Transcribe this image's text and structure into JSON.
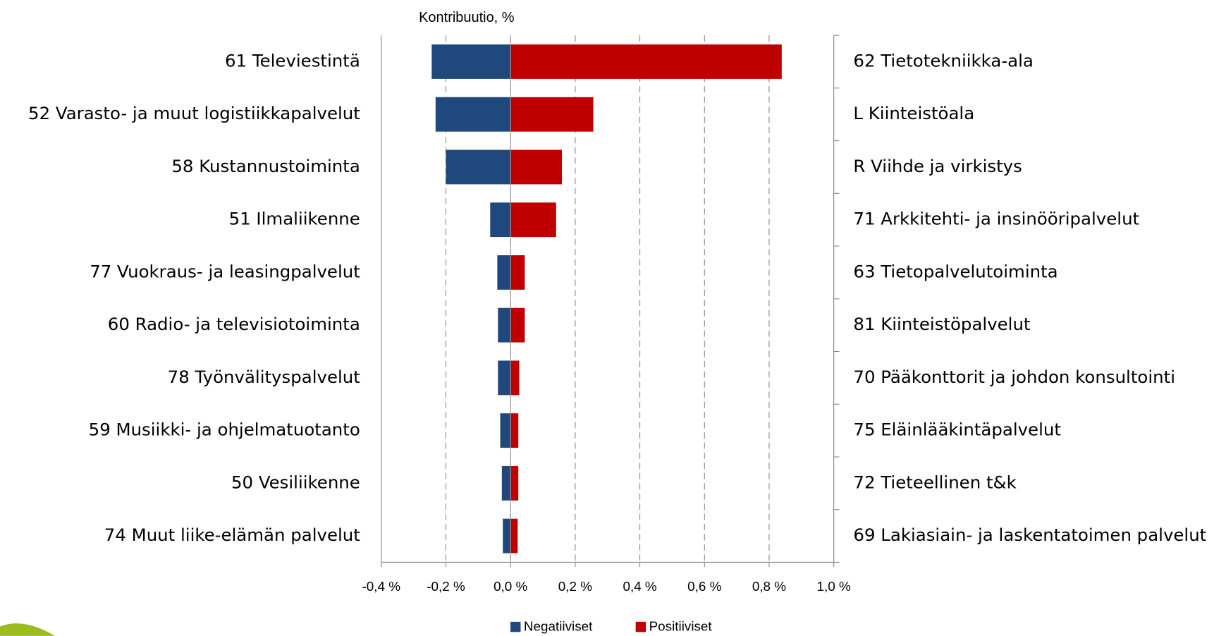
{
  "chart_data": {
    "type": "diverging-bar",
    "x_label": "Kontribuutio, %",
    "xlim": [
      -0.4,
      1.0
    ],
    "xticks": [
      {
        "value": -0.4,
        "label": "-0,4 %"
      },
      {
        "value": -0.2,
        "label": "-0,2 %"
      },
      {
        "value": 0.0,
        "label": "0,0 %"
      },
      {
        "value": 0.2,
        "label": "0,2 %"
      },
      {
        "value": 0.4,
        "label": "0,4 %"
      },
      {
        "value": 0.6,
        "label": "0,6 %"
      },
      {
        "value": 0.8,
        "label": "0,8 %"
      },
      {
        "value": 1.0,
        "label": "1,0 %"
      }
    ],
    "grid": true,
    "legend": "bottom",
    "series": [
      {
        "name": "Negatiiviset",
        "color": "#1f497d",
        "categories": [
          "61 Televiestintä",
          "52 Varasto- ja muut logistiikkapalvelut",
          "58 Kustannustoiminta",
          "51 Ilmaliikenne",
          "77 Vuokraus- ja leasingpalvelut",
          "60 Radio- ja televisiotoiminta",
          "78 Työnvälityspalvelut",
          "59 Musiikki- ja ohjelmatuotanto",
          "50 Vesiliikenne",
          "74 Muut liike-elämän palvelut"
        ],
        "values": [
          -0.244,
          -0.232,
          -0.2,
          -0.063,
          -0.041,
          -0.039,
          -0.039,
          -0.032,
          -0.027,
          -0.024
        ]
      },
      {
        "name": "Positiiviset",
        "color": "#c00000",
        "categories": [
          "62 Tietotekniikka-ala",
          "L Kiinteistöala",
          "R Viihde ja virkistys",
          "71 Arkkitehti- ja insinööripalvelut",
          "63 Tietopalvelutoiminta",
          "81 Kiinteistöpalvelut",
          "70 Pääkonttorit ja johdon konsultointi",
          "75 Eläinlääkintäpalvelut",
          "72 Tieteellinen t&k",
          "69 Lakiasiain- ja laskentatoimen palvelut"
        ],
        "values": [
          0.839,
          0.256,
          0.159,
          0.141,
          0.044,
          0.044,
          0.027,
          0.024,
          0.024,
          0.022
        ]
      }
    ]
  }
}
